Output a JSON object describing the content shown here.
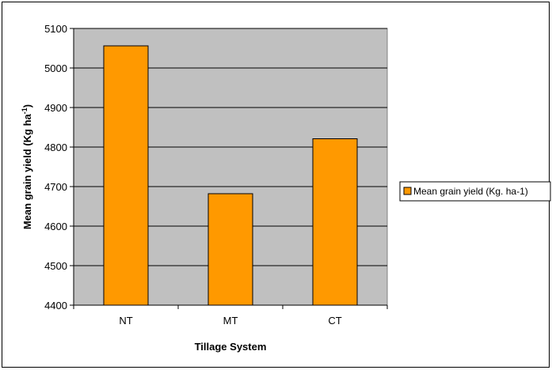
{
  "chart_data": {
    "type": "bar",
    "categories": [
      "NT",
      "MT",
      "CT"
    ],
    "series": [
      {
        "name": "Mean grain yield (Kg. ha-1)",
        "values": [
          5056,
          4682,
          4821
        ],
        "color": "#ff9900"
      }
    ],
    "xlabel": "Tillage System",
    "ylabel": "Mean grain yield (Kg  ha",
    "ylabel_superscript": "-1",
    "ylabel_close": ")",
    "ylim": [
      4400,
      5100
    ],
    "yticks": [
      4400,
      4500,
      4600,
      4700,
      4800,
      4900,
      5000,
      5100
    ],
    "grid": true,
    "plot_background": "#c0c0c0",
    "legend_position": "right"
  }
}
